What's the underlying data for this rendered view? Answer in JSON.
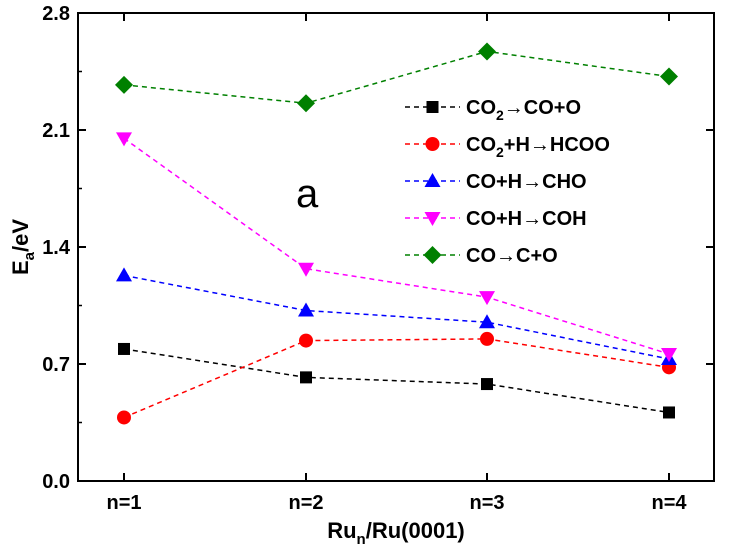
{
  "chart_data": {
    "type": "line",
    "panel_label": "a",
    "categories": [
      "n=1",
      "n=2",
      "n=3",
      "n=4"
    ],
    "xlabel": {
      "base": "Ru",
      "sub": "n",
      "rest": "/Ru(0001)"
    },
    "ylabel": {
      "base": "E",
      "sub": "a",
      "rest": "/eV"
    },
    "ylim": [
      0.0,
      2.8
    ],
    "yticks": [
      "0.0",
      "0.7",
      "1.4",
      "2.1",
      "2.8"
    ],
    "grid": false,
    "legend_position": "top-right",
    "series": [
      {
        "name": "CO₂→CO+O",
        "parts": [
          [
            "CO",
            ""
          ],
          [
            "2",
            "sub"
          ],
          [
            "→CO+O",
            ""
          ]
        ],
        "color": "#000000",
        "marker": "square",
        "values": [
          0.79,
          0.62,
          0.58,
          0.41
        ]
      },
      {
        "name": "CO₂+H→HCOO",
        "parts": [
          [
            "CO",
            ""
          ],
          [
            "2",
            "sub"
          ],
          [
            "+H→HCOO",
            ""
          ]
        ],
        "color": "#ff0000",
        "marker": "circle",
        "values": [
          0.38,
          0.84,
          0.85,
          0.68
        ]
      },
      {
        "name": "CO+H→CHO",
        "parts": [
          [
            "CO+H→CHO",
            ""
          ]
        ],
        "color": "#0000ff",
        "marker": "triangle-up",
        "values": [
          1.23,
          1.02,
          0.95,
          0.73
        ]
      },
      {
        "name": "CO+H→COH",
        "parts": [
          [
            "CO+H→COH",
            ""
          ]
        ],
        "color": "#ff00ff",
        "marker": "triangle-down",
        "values": [
          2.05,
          1.27,
          1.1,
          0.76
        ]
      },
      {
        "name": "CO→C+O",
        "parts": [
          [
            "CO→C+O",
            ""
          ]
        ],
        "color": "#008000",
        "marker": "diamond",
        "values": [
          2.37,
          2.26,
          2.57,
          2.42
        ]
      }
    ]
  }
}
